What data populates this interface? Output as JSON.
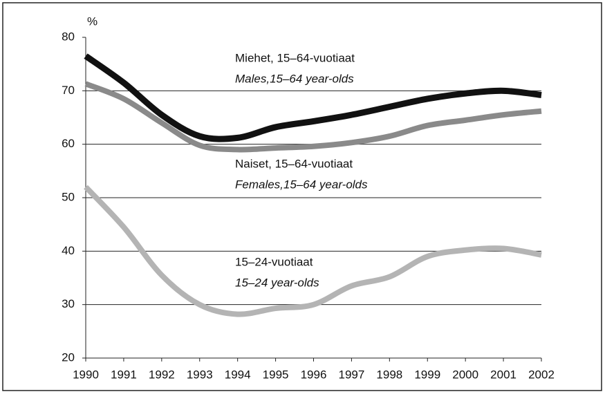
{
  "chart_data": {
    "type": "line",
    "y_unit": "%",
    "x": [
      1990,
      1991,
      1992,
      1993,
      1994,
      1995,
      1996,
      1997,
      1998,
      1999,
      2000,
      2001,
      2002
    ],
    "xlim": [
      1990,
      2002
    ],
    "xticks": [
      1990,
      1991,
      1992,
      1993,
      1994,
      1995,
      1996,
      1997,
      1998,
      1999,
      2000,
      2001,
      2002
    ],
    "ylim": [
      20,
      80
    ],
    "yticks": [
      20,
      30,
      40,
      50,
      60,
      70,
      80
    ],
    "grid": true,
    "series": [
      {
        "name": "Miehet, 15–64-vuotiaat",
        "name_en": "Males,15–64 year-olds",
        "color": "#111111",
        "values": [
          76.5,
          71.5,
          65.5,
          61.5,
          61.2,
          63.2,
          64.3,
          65.5,
          67.0,
          68.5,
          69.5,
          70.0,
          69.2
        ]
      },
      {
        "name": "Naiset, 15–64-vuotiaat",
        "name_en": "Females,15–64 year-olds",
        "color": "#8a8a8a",
        "values": [
          71.3,
          68.5,
          64.0,
          59.8,
          59.0,
          59.3,
          59.6,
          60.3,
          61.5,
          63.5,
          64.5,
          65.5,
          66.2
        ]
      },
      {
        "name": "15–24-vuotiaat",
        "name_en": "15–24 year-olds",
        "color": "#b4b4b4",
        "values": [
          52.0,
          44.5,
          35.5,
          30.0,
          28.2,
          29.3,
          30.0,
          33.5,
          35.2,
          39.0,
          40.2,
          40.5,
          39.3
        ]
      }
    ]
  }
}
